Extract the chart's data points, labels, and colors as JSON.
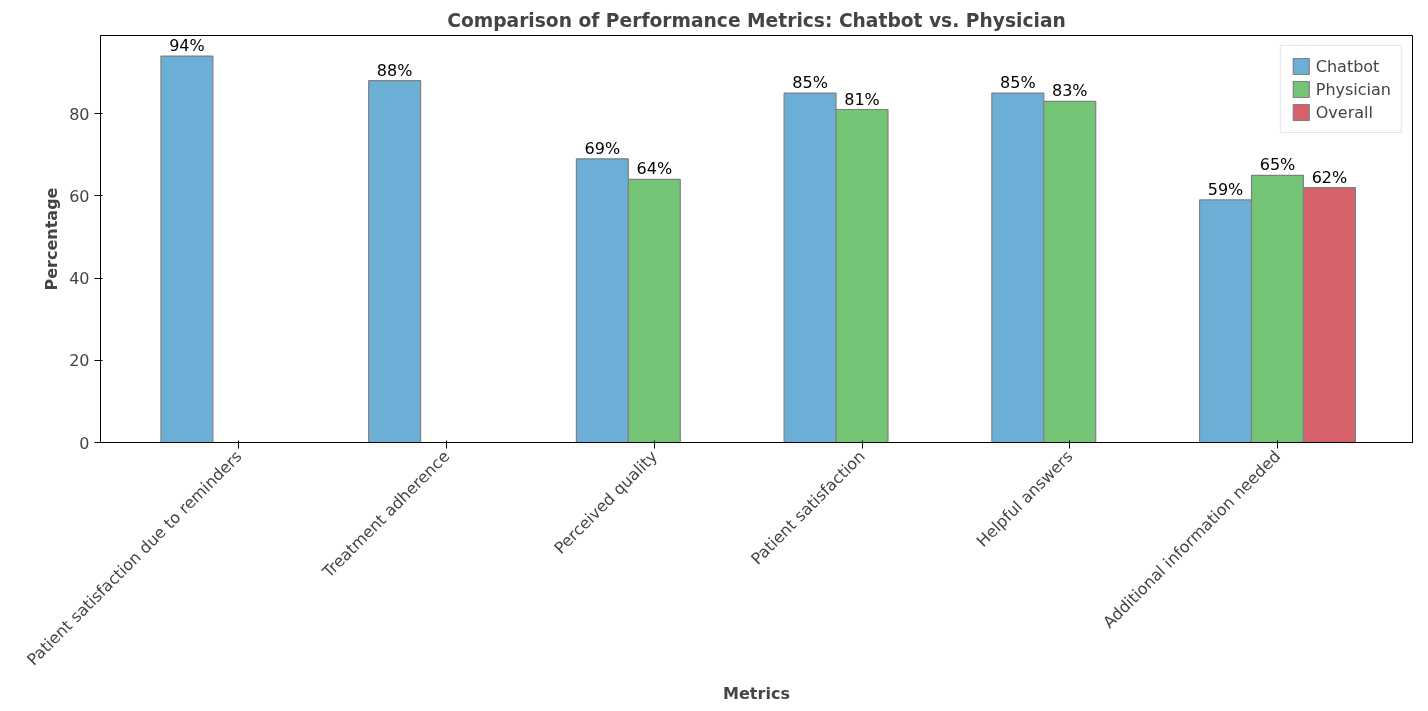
{
  "chart_data": {
    "type": "bar",
    "title": "Comparison of Performance Metrics: Chatbot vs. Physician",
    "xlabel": "Metrics",
    "ylabel": "Percentage",
    "categories": [
      "Patient satisfaction due to reminders",
      "Treatment adherence",
      "Perceived quality",
      "Patient satisfaction",
      "Helpful answers",
      "Additional information needed"
    ],
    "series": [
      {
        "name": "Chatbot",
        "color": "#6baed6",
        "values": [
          94,
          88,
          69,
          85,
          85,
          59
        ],
        "value_labels": [
          "94%",
          "88%",
          "69%",
          "85%",
          "85%",
          "59%"
        ]
      },
      {
        "name": "Physician",
        "color": "#74c476",
        "values": [
          null,
          null,
          64,
          81,
          83,
          65
        ],
        "value_labels": [
          null,
          null,
          "64%",
          "81%",
          "83%",
          "65%"
        ]
      },
      {
        "name": "Overall",
        "color": "#d6616b",
        "values": [
          null,
          null,
          null,
          null,
          null,
          62
        ],
        "value_labels": [
          null,
          null,
          null,
          null,
          null,
          "62%"
        ]
      }
    ],
    "ylim": [
      0,
      99
    ],
    "yticks": [
      0,
      20,
      40,
      60,
      80
    ],
    "grid": false,
    "legend": "top right"
  }
}
